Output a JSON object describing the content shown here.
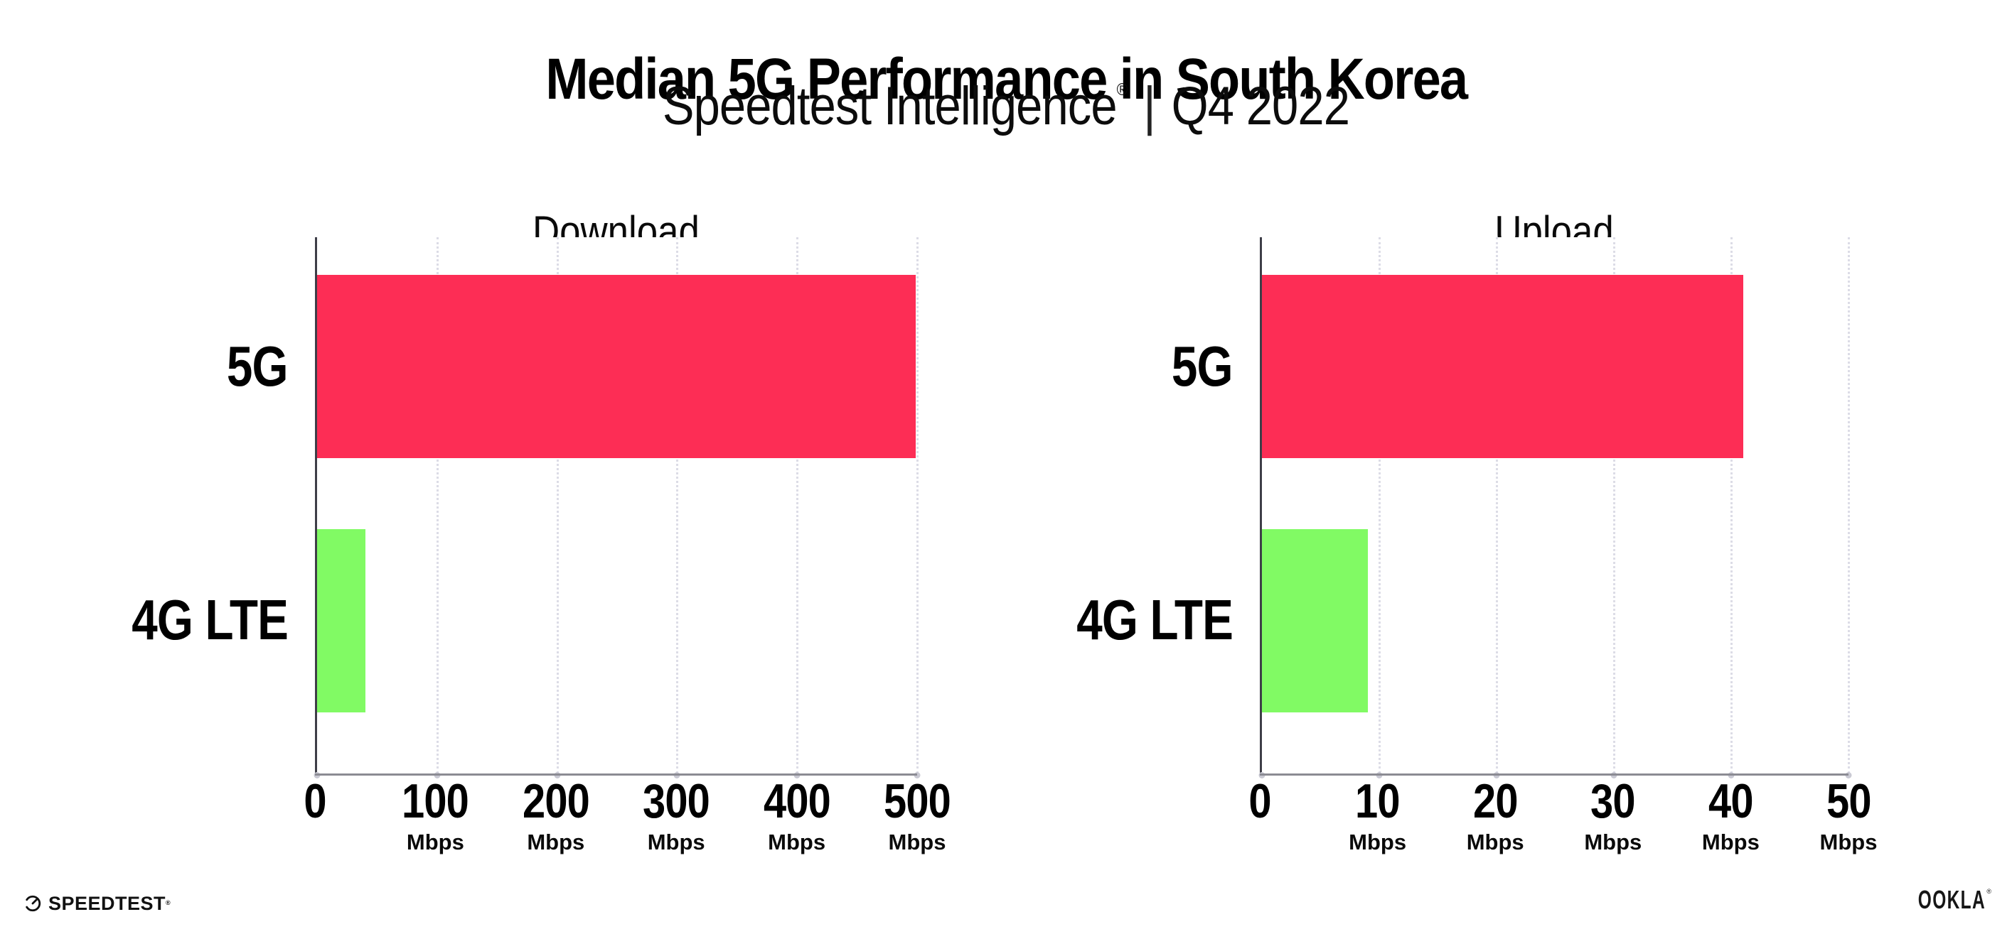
{
  "header": {
    "title": "Median 5G Performance in South Korea",
    "subtitle": {
      "brand": "Speedtest Intelligence",
      "registered": "®",
      "separator": "|",
      "period": "Q4 2022"
    }
  },
  "colors": {
    "bar_5g": "#fd2d55",
    "bar_4g_lte": "#81fa64",
    "y_axis_line": "#3e3e48",
    "x_axis_line": "#8b8b93",
    "gridline_dots": "#dcdce6",
    "text": "#000000"
  },
  "chart_data": [
    {
      "type": "bar",
      "orientation": "horizontal",
      "title": "Download",
      "categories": [
        "5G",
        "4G LTE"
      ],
      "values": [
        499,
        40
      ],
      "unit": "Mbps",
      "xlim": [
        0,
        500
      ],
      "xticks": [
        0,
        100,
        200,
        300,
        400,
        500
      ],
      "tick_unit_label": "Mbps",
      "bar_colors": [
        "#fd2d55",
        "#81fa64"
      ],
      "grid": "dotted-vertical-major",
      "legend": "none"
    },
    {
      "type": "bar",
      "orientation": "horizontal",
      "title": "Upload",
      "categories": [
        "5G",
        "4G LTE"
      ],
      "values": [
        41,
        9
      ],
      "unit": "Mbps",
      "xlim": [
        0,
        50
      ],
      "xticks": [
        0,
        10,
        20,
        30,
        40,
        50
      ],
      "tick_unit_label": "Mbps",
      "bar_colors": [
        "#fd2d55",
        "#81fa64"
      ],
      "grid": "dotted-vertical-major",
      "legend": "none"
    }
  ],
  "footer": {
    "speedtest": {
      "text": "SPEEDTEST",
      "registered": "®"
    },
    "ookla": {
      "text": "OOKLA",
      "registered": "®"
    }
  }
}
